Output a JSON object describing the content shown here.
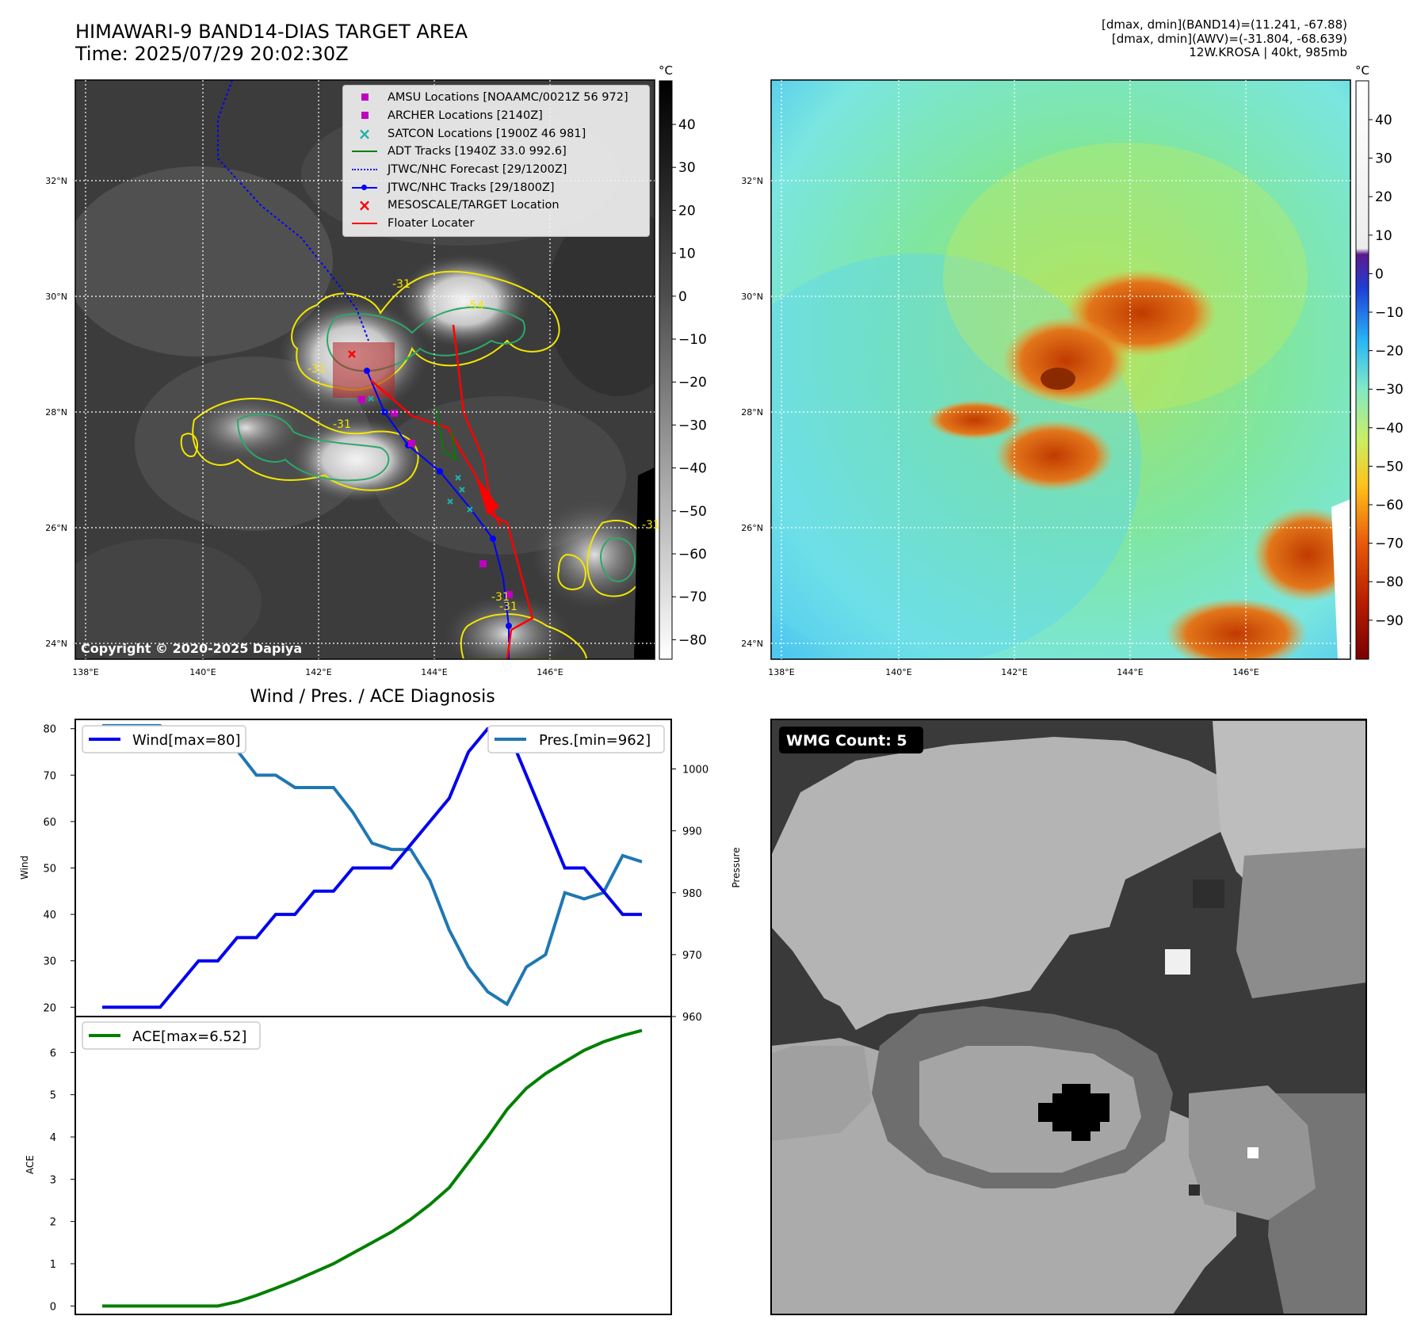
{
  "header": {
    "title_line1": "HIMAWARI-9 BAND14-DIAS TARGET AREA",
    "title_line2": "Time: 2025/07/29 20:02:30Z",
    "info_line1": "[dmax, dmin](BAND14)=(11.241, -67.88)",
    "info_line2": "[dmax, dmin](AWV)=(-31.804, -68.639)",
    "info_line3": "12W.KROSA | 40kt, 985mb"
  },
  "colors": {
    "wind": "#0000ee",
    "pressure": "#1f77b4",
    "ace": "#008000",
    "jtwc_track": "#0000ff",
    "floater": "#ff0000",
    "adt": "#008000",
    "amsu": "#c000c0",
    "satcon": "#20b2aa",
    "contour_yellow": "#f2e600",
    "contour_green": "#2ca86a"
  },
  "icons": {
    "amsu": "square-marker",
    "archer": "square-marker",
    "satcon": "x-marker",
    "mesoscale": "x-marker",
    "jtwc_track": "dot-line",
    "forecast": "dotted-line"
  },
  "ir_map": {
    "colorbar_unit": "°C",
    "colorbar_ticks": [
      "40",
      "30",
      "20",
      "10",
      "0",
      "−10",
      "−20",
      "−30",
      "−40",
      "−50",
      "−60",
      "−70",
      "−80"
    ],
    "copyright": "Copyright © 2020-2025 Dapiya",
    "contour_labels": [
      "-31",
      "-54",
      "-31",
      "-31",
      "-31",
      "-31",
      "-31"
    ],
    "legend": [
      {
        "label": "AMSU Locations [NOAAMC/0021Z 56 972]",
        "marker": "square",
        "color": "#c000c0"
      },
      {
        "label": "ARCHER Locations [2140Z]",
        "marker": "square",
        "color": "#c000c0"
      },
      {
        "label": "SATCON Locations [1900Z 46 981]",
        "marker": "x",
        "color": "#20b2aa"
      },
      {
        "label": "ADT Tracks [1940Z 33.0 992.6]",
        "marker": "line",
        "color": "#008000"
      },
      {
        "label": "JTWC/NHC Forecast [29/1200Z]",
        "marker": "dotted",
        "color": "#0000ff"
      },
      {
        "label": "JTWC/NHC Tracks [29/1800Z]",
        "marker": "dotline",
        "color": "#0000ff"
      },
      {
        "label": "MESOSCALE/TARGET Location",
        "marker": "redx",
        "color": "#ff0000"
      },
      {
        "label": "Floater Locater",
        "marker": "line",
        "color": "#ff0000"
      }
    ]
  },
  "awv_map": {
    "colorbar_unit": "°C",
    "colorbar_ticks": [
      "40",
      "30",
      "20",
      "10",
      "0",
      "−10",
      "−20",
      "−30",
      "−40",
      "−50",
      "−60",
      "−70",
      "−80",
      "−90"
    ]
  },
  "map_axes": {
    "lon_ticks": [
      "138°E",
      "140°E",
      "142°E",
      "144°E",
      "146°E"
    ],
    "lat_ticks": [
      "32°N",
      "30°N",
      "28°N",
      "26°N",
      "24°N"
    ]
  },
  "wmg": {
    "label": "WMG Count: 5"
  },
  "chart_data": [
    {
      "type": "line",
      "title": "Wind / Pres. / ACE Diagnosis",
      "ylabel": "Wind",
      "y2label": "Pressure",
      "ylim": [
        18,
        82
      ],
      "y2lim": [
        960,
        1008
      ],
      "yticks": [
        20,
        30,
        40,
        50,
        60,
        70,
        80
      ],
      "y2ticks": [
        960,
        970,
        980,
        990,
        1000
      ],
      "legend": [
        "top-left",
        "top-right"
      ],
      "series": [
        {
          "name": "Wind[max=80]",
          "axis": "left",
          "values": [
            20,
            20,
            20,
            20,
            25,
            30,
            30,
            35,
            35,
            40,
            40,
            45,
            45,
            50,
            50,
            50,
            55,
            60,
            65,
            75,
            80,
            80,
            70,
            60,
            50,
            50,
            45,
            40,
            40
          ]
        },
        {
          "name": "Pres.[min=962]",
          "axis": "right",
          "values": [
            1007,
            1007,
            1007,
            1007,
            1004,
            1004,
            1003,
            1003,
            999,
            999,
            997,
            997,
            997,
            993,
            988,
            987,
            987,
            982,
            974,
            968,
            964,
            962,
            968,
            970,
            980,
            979,
            980,
            986,
            985
          ]
        }
      ]
    },
    {
      "type": "line",
      "ylabel": "ACE",
      "ylim": [
        -0.2,
        6.85
      ],
      "yticks": [
        0,
        1,
        2,
        3,
        4,
        5,
        6
      ],
      "legend": "top-left",
      "series": [
        {
          "name": "ACE[max=6.52]",
          "values": [
            0,
            0,
            0,
            0,
            0,
            0,
            0,
            0.1,
            0.25,
            0.42,
            0.6,
            0.8,
            1.0,
            1.25,
            1.5,
            1.75,
            2.05,
            2.4,
            2.8,
            3.4,
            4.0,
            4.65,
            5.15,
            5.5,
            5.78,
            6.05,
            6.25,
            6.4,
            6.52
          ]
        }
      ]
    }
  ]
}
